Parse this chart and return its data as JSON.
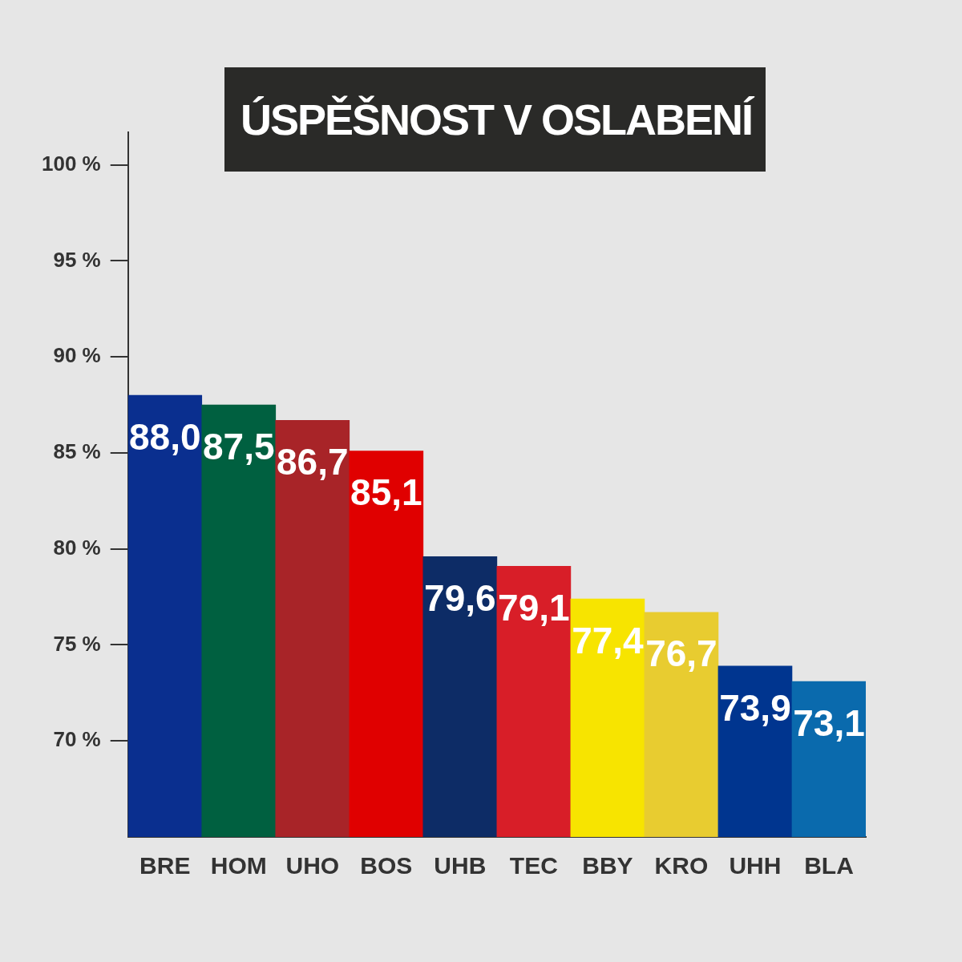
{
  "chart_data": {
    "type": "bar",
    "title": "ÚSPĚŠNOST V OSLABENÍ",
    "categories": [
      "BRE",
      "HOM",
      "UHO",
      "BOS",
      "UHB",
      "TEC",
      "BBY",
      "KRO",
      "UHH",
      "BLA"
    ],
    "values": [
      88.0,
      87.5,
      86.7,
      85.1,
      79.6,
      79.1,
      77.4,
      76.7,
      73.9,
      73.1
    ],
    "colors": [
      "#0a2f8f",
      "#006040",
      "#a82428",
      "#e00000",
      "#0d2c66",
      "#d81e28",
      "#f7e400",
      "#e8cc30",
      "#00358f",
      "#0a6aad"
    ],
    "value_labels": [
      "88,0",
      "87,5",
      "86,7",
      "85,1",
      "79,6",
      "79,1",
      "77,4",
      "76,7",
      "73,9",
      "73,1"
    ],
    "ylim": [
      65,
      101.7
    ],
    "yticks": [
      {
        "value": 70,
        "label": "70 %"
      },
      {
        "value": 75,
        "label": "75 %"
      },
      {
        "value": 80,
        "label": "80 %"
      },
      {
        "value": 85,
        "label": "85 %"
      },
      {
        "value": 90,
        "label": "90 %"
      },
      {
        "value": 95,
        "label": "95 %"
      },
      {
        "value": 100,
        "label": "100 %"
      }
    ],
    "grid": false,
    "legend": false
  }
}
